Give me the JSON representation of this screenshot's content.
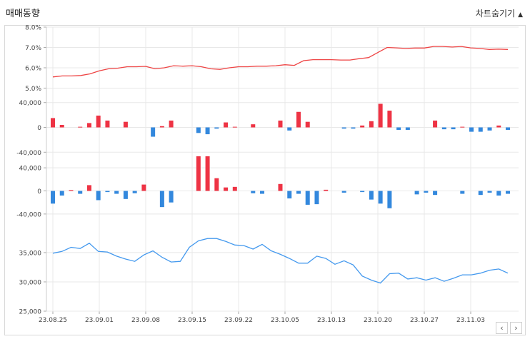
{
  "header": {
    "title": "매매동향",
    "toggle_label": "차트숨기기",
    "toggle_icon": "triangle-up-icon"
  },
  "nav": {
    "prev": "‹",
    "next": "›"
  },
  "colors": {
    "ratio": "#ee4444",
    "positive": "#ee3344",
    "negative": "#3388dd",
    "price": "#4499ee",
    "grid": "#e8e8e8"
  },
  "chart_data": {
    "type": "line-bar-combo",
    "x_tick_labels": [
      "23.08.25",
      "23.09.01",
      "23.09.08",
      "23.09.15",
      "23.09.22",
      "23.10.05",
      "23.10.13",
      "23.10.20",
      "23.10.27",
      "23.11.03"
    ],
    "panels": [
      {
        "type": "line",
        "yticks": [
          "8.0%",
          "7.0%",
          "6.0%",
          "5.0%"
        ],
        "ylim": [
          4.7,
          8.0
        ],
        "values": [
          5.55,
          5.6,
          5.6,
          5.62,
          5.7,
          5.85,
          5.95,
          5.98,
          6.05,
          6.05,
          6.07,
          5.95,
          6.0,
          6.1,
          6.08,
          6.1,
          6.05,
          5.95,
          5.92,
          6.0,
          6.05,
          6.05,
          6.08,
          6.08,
          6.1,
          6.15,
          6.12,
          6.35,
          6.4,
          6.4,
          6.4,
          6.38,
          6.38,
          6.45,
          6.5,
          6.75,
          7.0,
          6.98,
          6.95,
          6.97,
          6.97,
          7.05,
          7.05,
          7.02,
          7.05,
          6.98,
          6.95,
          6.9,
          6.92,
          6.9
        ]
      },
      {
        "type": "bar",
        "yticks": [
          "40,000",
          "0",
          "-40,000"
        ],
        "ylim": [
          -50000,
          50000
        ],
        "values": [
          15000,
          4000,
          0,
          1000,
          7000,
          19000,
          11000,
          0,
          9000,
          0,
          0,
          -15000,
          2000,
          11000,
          0,
          0,
          -9000,
          -11000,
          -2000,
          8000,
          1000,
          0,
          5000,
          0,
          0,
          11000,
          -5000,
          25000,
          9000,
          0,
          0,
          0,
          -2000,
          -2000,
          3000,
          10000,
          38000,
          27000,
          -4000,
          -4000,
          0,
          0,
          11000,
          -3000,
          -3000,
          1000,
          -7000,
          -7000,
          -5000,
          3000,
          -4000
        ]
      },
      {
        "type": "bar",
        "yticks": [
          "40,000",
          "0",
          "-40,000"
        ],
        "ylim": [
          -55000,
          55000
        ],
        "values": [
          -22000,
          -8000,
          1500,
          -5000,
          10000,
          -16000,
          -2000,
          -5000,
          -14000,
          -4000,
          11000,
          0,
          -28000,
          -20000,
          0,
          0,
          60000,
          60000,
          22000,
          6000,
          7000,
          0,
          -4000,
          -5000,
          0,
          12000,
          -13000,
          -5000,
          -24000,
          -23000,
          2000,
          0,
          -3000,
          0,
          -2000,
          -15000,
          -22000,
          -30000,
          0,
          0,
          -6000,
          -3000,
          -7000,
          0,
          0,
          -5000,
          0,
          -7000,
          -3000,
          -8000,
          -5000
        ]
      },
      {
        "type": "line",
        "yticks": [
          "35,000",
          "30,000",
          "25,000"
        ],
        "ylim": [
          25000,
          39500
        ],
        "values": [
          34900,
          35200,
          35900,
          35700,
          36600,
          35200,
          35100,
          34400,
          33900,
          33500,
          34600,
          35300,
          34200,
          33400,
          33500,
          35900,
          37000,
          37400,
          37400,
          36900,
          36300,
          36200,
          35600,
          36400,
          35300,
          34700,
          34000,
          33200,
          33200,
          34400,
          34000,
          33000,
          33600,
          32900,
          31000,
          30300,
          29800,
          31400,
          31500,
          30500,
          30700,
          30300,
          30700,
          30100,
          30600,
          31200,
          31200,
          31500,
          32000,
          32200,
          31500
        ]
      }
    ]
  }
}
